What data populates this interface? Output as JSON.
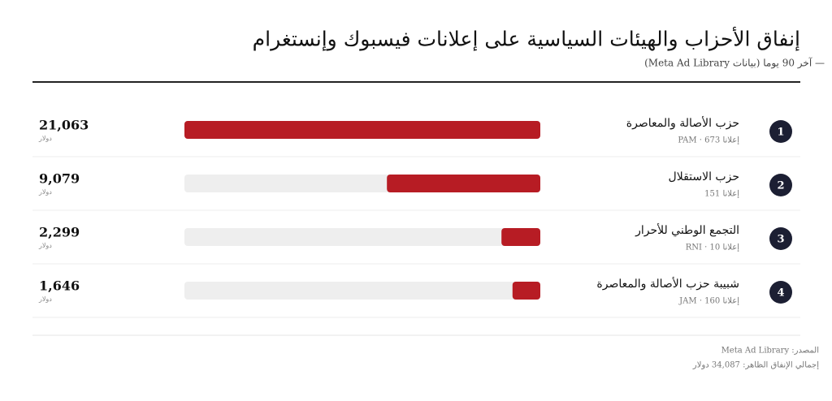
{
  "chart_data": {
    "type": "bar",
    "title": "إنفاق الأحزاب والهيئات السياسية على إعلانات فيسبوك وإنستغرام",
    "subtitle": "— آخر 90 يوما (بيانات Meta Ad Library)",
    "ranks": [
      1,
      2,
      3,
      4
    ],
    "categories": [
      "حزب الأصالة والمعاصرة",
      "حزب الاستقلال",
      "التجمع الوطني للأحرار",
      "شبيبة حزب الأصالة والمعاصرة"
    ],
    "details": [
      "إعلانا PAM · 673",
      "إعلانا 151",
      "إعلانا RNI · 10",
      "إعلانا JAM · 160"
    ],
    "values": [
      21063,
      9079,
      2299,
      1646
    ],
    "value_labels": [
      "21,063",
      "9,079",
      "2,299",
      "1,646"
    ],
    "unit": "دولار",
    "color": "#b71c24",
    "source": "المصدر: Meta Ad Library",
    "total": "إجمالي الإنفاق الظاهر: 34,087 دولار"
  }
}
